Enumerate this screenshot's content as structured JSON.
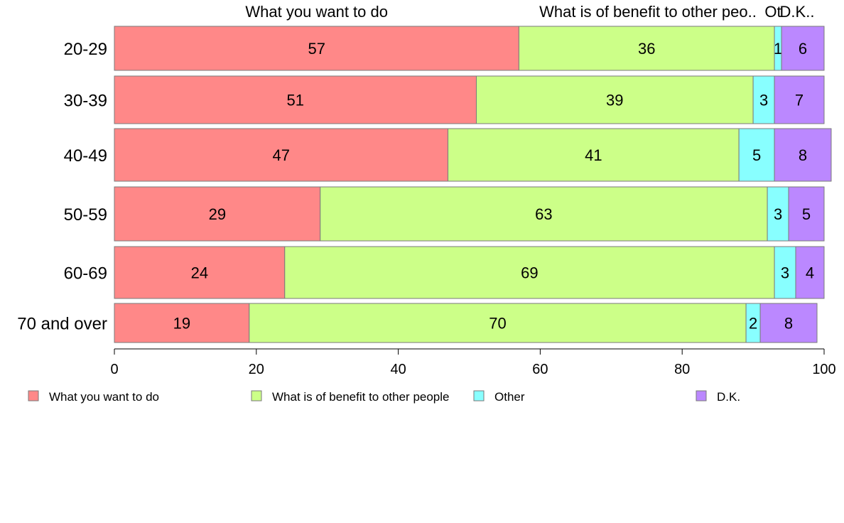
{
  "chart_data": {
    "type": "bar",
    "orientation": "horizontal",
    "stacked": true,
    "categories": [
      "20-29",
      "30-39",
      "40-49",
      "50-59",
      "60-69",
      "70 and over"
    ],
    "series": [
      {
        "name": "What you want to do",
        "color": "#ff8888",
        "values": [
          57,
          51,
          47,
          29,
          24,
          19
        ]
      },
      {
        "name": "What is of benefit to other people",
        "color": "#ccff88",
        "values": [
          36,
          39,
          41,
          63,
          69,
          70
        ]
      },
      {
        "name": "Other",
        "color": "#88ffff",
        "values": [
          1,
          3,
          5,
          3,
          3,
          2
        ]
      },
      {
        "name": "D.K.",
        "color": "#bb88ff",
        "values": [
          6,
          7,
          8,
          5,
          4,
          8
        ]
      }
    ],
    "top_labels": [
      "What you want to do",
      "What is of benefit to other peo..",
      "Ot",
      "D.K.."
    ],
    "xlim": [
      0,
      100
    ],
    "xticks": [
      "0",
      "20",
      "40",
      "60",
      "80",
      "100"
    ],
    "legend_position": "bottom",
    "grid": false
  }
}
